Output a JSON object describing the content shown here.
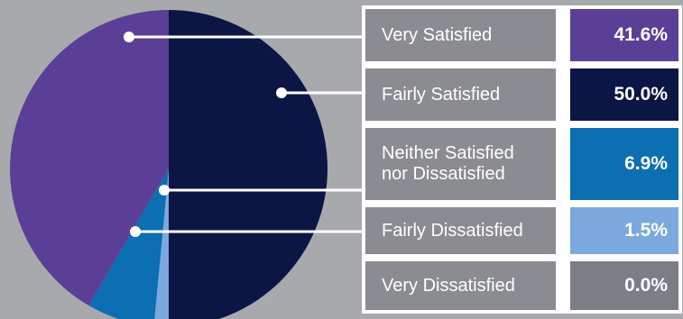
{
  "chart_data": {
    "type": "pie",
    "title": "",
    "slices": [
      {
        "label": "Very Satisfied",
        "value": 41.6,
        "display": "41.6%",
        "color": "#5b3f97"
      },
      {
        "label": "Fairly Satisfied",
        "value": 50.0,
        "display": "50.0%",
        "color": "#0c1644"
      },
      {
        "label": "Neither Satisfied nor Dissatisfied",
        "value": 6.9,
        "display": "6.9%",
        "color": "#0b6fb1"
      },
      {
        "label": "Fairly Dissatisfied",
        "value": 1.5,
        "display": "1.5%",
        "color": "#7ba9de"
      },
      {
        "label": "Very Dissatisfied",
        "value": 0.0,
        "display": "0.0%",
        "color": "#7c7e85"
      }
    ],
    "legend_position": "right"
  },
  "colors": {
    "background": "#a7a9ad",
    "label_cell": "#8a8c91",
    "leader_line": "#ffffff"
  }
}
